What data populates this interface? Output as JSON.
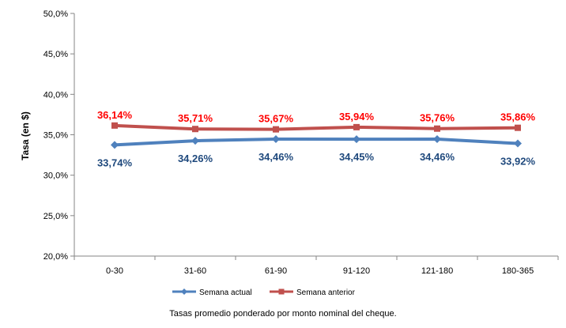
{
  "chart_data": {
    "type": "line",
    "title": "",
    "xlabel": "",
    "ylabel": "Tasa (en $)",
    "categories": [
      "0-30",
      "31-60",
      "61-90",
      "91-120",
      "121-180",
      "180-365"
    ],
    "ylim": [
      20,
      50
    ],
    "yticks": [
      20,
      25,
      30,
      35,
      40,
      45,
      50
    ],
    "ytick_labels": [
      "20,0%",
      "25,0%",
      "30,0%",
      "35,0%",
      "40,0%",
      "45,0%",
      "50,0%"
    ],
    "grid": false,
    "legend_position": "bottom",
    "series": [
      {
        "name": "Semana actual",
        "values": [
          33.74,
          34.26,
          34.46,
          34.45,
          34.46,
          33.92
        ],
        "labels": [
          "33,74%",
          "34,26%",
          "34,46%",
          "34,45%",
          "34,46%",
          "33,92%"
        ],
        "color": "#4F81BD",
        "label_color": "#1F497D",
        "marker": "diamond",
        "label_position": "below"
      },
      {
        "name": "Semana anterior",
        "values": [
          36.14,
          35.71,
          35.67,
          35.94,
          35.76,
          35.86
        ],
        "labels": [
          "36,14%",
          "35,71%",
          "35,67%",
          "35,94%",
          "35,76%",
          "35,86%"
        ],
        "color": "#C0504D",
        "label_color": "#FF0000",
        "marker": "square",
        "label_position": "above"
      }
    ]
  },
  "caption": "Tasas promedio ponderado por monto nominal del cheque."
}
